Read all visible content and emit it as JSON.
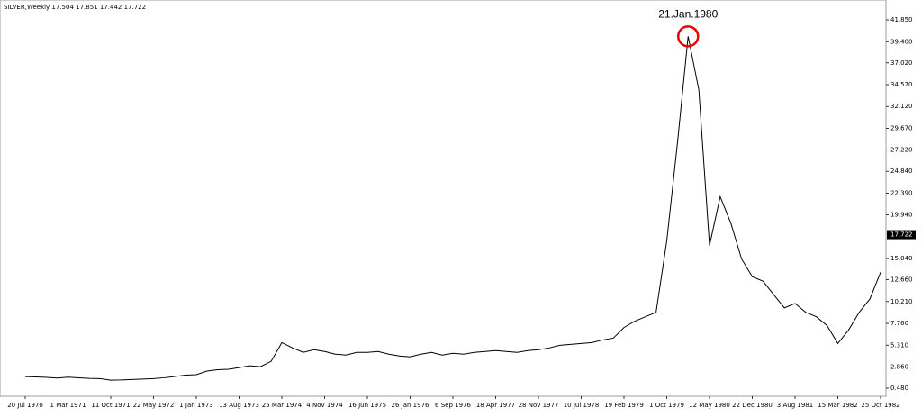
{
  "chart_data": {
    "type": "line",
    "title": "SILVER,Weekly  17.504 17.851 17.442 17.722",
    "annotation": "21.Jan.1980",
    "current_price": 17.722,
    "categories": [
      "20 Jul 1970",
      null,
      null,
      null,
      "1 Mar 1971",
      null,
      null,
      null,
      "11 Oct 1971",
      null,
      null,
      null,
      "22 May 1972",
      null,
      null,
      null,
      "1 Jan 1973",
      null,
      null,
      null,
      "13 Aug 1973",
      null,
      null,
      null,
      "25 Mar 1974",
      null,
      null,
      null,
      "4 Nov 1974",
      null,
      null,
      null,
      "16 Jun 1975",
      null,
      null,
      null,
      "26 Jan 1976",
      null,
      null,
      null,
      "6 Sep 1976",
      null,
      null,
      null,
      "18 Apr 1977",
      null,
      null,
      null,
      "28 Nov 1977",
      null,
      null,
      null,
      "10 Jul 1978",
      null,
      null,
      null,
      "19 Feb 1979",
      null,
      null,
      null,
      "1 Oct 1979",
      null,
      null,
      null,
      "12 May 1980",
      null,
      null,
      null,
      "22 Dec 1980",
      null,
      null,
      null,
      "3 Aug 1981",
      null,
      null,
      null,
      "15 Mar 1982",
      null,
      null,
      null,
      "25 Oct 1982"
    ],
    "values": [
      1.78,
      1.75,
      1.7,
      1.62,
      1.72,
      1.65,
      1.58,
      1.55,
      1.38,
      1.4,
      1.45,
      1.5,
      1.55,
      1.65,
      1.8,
      1.95,
      2.0,
      2.4,
      2.55,
      2.6,
      2.8,
      3.0,
      2.9,
      3.5,
      5.6,
      5.0,
      4.5,
      4.8,
      4.6,
      4.3,
      4.2,
      4.5,
      4.5,
      4.6,
      4.3,
      4.1,
      4.0,
      4.3,
      4.5,
      4.2,
      4.4,
      4.3,
      4.5,
      4.6,
      4.7,
      4.6,
      4.5,
      4.7,
      4.8,
      5.0,
      5.3,
      5.4,
      5.5,
      5.6,
      5.9,
      6.1,
      7.3,
      8.0,
      8.5,
      9.0,
      17.0,
      28.0,
      40.0,
      34.0,
      16.5,
      22.0,
      19.0,
      15.0,
      13.0,
      12.5,
      11.0,
      9.5,
      10.0,
      9.0,
      8.5,
      7.5,
      5.5,
      7.0,
      9.0,
      10.5,
      13.5
    ],
    "color": "#000000",
    "ylim": [
      -0.43,
      44.08
    ],
    "yticks": [
      {
        "value": 0.48,
        "label": "0.480"
      },
      {
        "value": 2.86,
        "label": "2.860"
      },
      {
        "value": 5.31,
        "label": "5.310"
      },
      {
        "value": 7.76,
        "label": "7.760"
      },
      {
        "value": 10.21,
        "label": "10.210"
      },
      {
        "value": 12.66,
        "label": "12.660"
      },
      {
        "value": 15.04,
        "label": "15.040"
      },
      {
        "value": 19.94,
        "label": "19.940"
      },
      {
        "value": 22.39,
        "label": "22.390"
      },
      {
        "value": 24.84,
        "label": "24.840"
      },
      {
        "value": 27.22,
        "label": "27.220"
      },
      {
        "value": 29.67,
        "label": "29.670"
      },
      {
        "value": 32.12,
        "label": "32.120"
      },
      {
        "value": 34.57,
        "label": "34.570"
      },
      {
        "value": 37.02,
        "label": "37.020"
      },
      {
        "value": 39.4,
        "label": "39.400"
      },
      {
        "value": 41.85,
        "label": "41.850"
      }
    ]
  }
}
